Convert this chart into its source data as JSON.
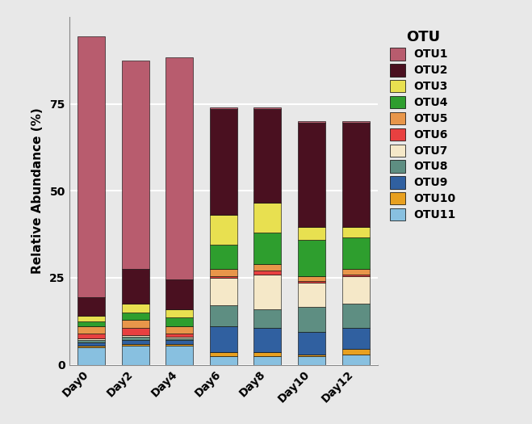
{
  "days": [
    "Day0",
    "Day2",
    "Day4",
    "Day6",
    "Day8",
    "Day10",
    "Day12"
  ],
  "otus": [
    "OTU11",
    "OTU10",
    "OTU9",
    "OTU8",
    "OTU7",
    "OTU6",
    "OTU5",
    "OTU4",
    "OTU3",
    "OTU2",
    "OTU1"
  ],
  "colors": {
    "OTU1": "#B85C6E",
    "OTU2": "#4A1020",
    "OTU3": "#E8E050",
    "OTU4": "#2E9E2E",
    "OTU5": "#E8964A",
    "OTU6": "#E84040",
    "OTU7": "#F5E8C8",
    "OTU8": "#5E8E82",
    "OTU9": "#3060A0",
    "OTU10": "#E8A020",
    "OTU11": "#88C0E0"
  },
  "values": {
    "OTU11": [
      5.0,
      5.5,
      5.5,
      2.5,
      2.5,
      2.5,
      3.0
    ],
    "OTU10": [
      0.5,
      0.5,
      0.5,
      1.0,
      1.0,
      0.5,
      1.5
    ],
    "OTU9": [
      1.0,
      1.0,
      1.0,
      7.5,
      7.0,
      6.5,
      6.0
    ],
    "OTU8": [
      0.5,
      1.0,
      0.5,
      6.0,
      5.5,
      7.0,
      7.0
    ],
    "OTU7": [
      0.5,
      0.5,
      0.5,
      8.0,
      10.0,
      7.0,
      8.0
    ],
    "OTU6": [
      1.5,
      2.0,
      1.0,
      0.5,
      1.0,
      0.5,
      0.5
    ],
    "OTU5": [
      2.0,
      2.5,
      2.0,
      2.0,
      2.0,
      1.5,
      1.5
    ],
    "OTU4": [
      1.5,
      2.0,
      2.5,
      7.0,
      9.0,
      10.5,
      9.0
    ],
    "OTU3": [
      1.5,
      2.5,
      2.5,
      8.5,
      8.5,
      3.5,
      3.0
    ],
    "OTU2": [
      5.5,
      10.0,
      8.5,
      30.5,
      27.0,
      30.0,
      30.0
    ],
    "OTU1": [
      75.0,
      60.0,
      64.0,
      0.5,
      0.5,
      0.5,
      0.5
    ]
  },
  "ylabel": "Relative Abundance (%)",
  "legend_title": "OTU",
  "legend_otus": [
    "OTU1",
    "OTU2",
    "OTU3",
    "OTU4",
    "OTU5",
    "OTU6",
    "OTU7",
    "OTU8",
    "OTU9",
    "OTU10",
    "OTU11"
  ],
  "ylim": [
    0,
    100
  ],
  "yticks": [
    0,
    25,
    50,
    75
  ],
  "background_color": "#E8E8E8",
  "grid_color": "#FFFFFF",
  "plot_area_bg": "#E8E8E8"
}
